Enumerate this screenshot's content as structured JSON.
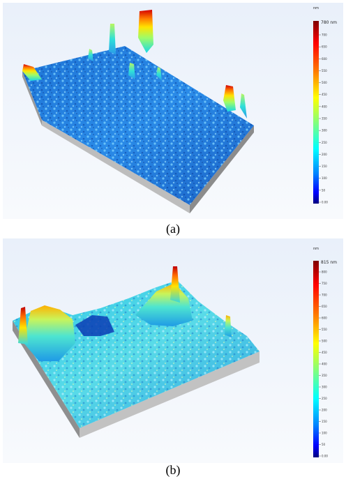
{
  "figure": {
    "panels": [
      {
        "id": "a",
        "caption": "(a)",
        "colorbar": {
          "unit": "nm",
          "max_label": "780 nm",
          "ticks": [
            "700",
            "650",
            "600",
            "550",
            "500",
            "450",
            "400",
            "350",
            "300",
            "250",
            "200",
            "150",
            "100",
            "50",
            "0.00"
          ]
        }
      },
      {
        "id": "b",
        "caption": "(b)",
        "colorbar": {
          "unit": "nm",
          "max_label": "815 nm",
          "ticks": [
            "800",
            "750",
            "700",
            "650",
            "600",
            "550",
            "500",
            "450",
            "400",
            "350",
            "300",
            "250",
            "200",
            "150",
            "100",
            "50",
            "0.00"
          ]
        }
      }
    ],
    "colormap": [
      "#00007f",
      "#0000ff",
      "#007fff",
      "#00ffff",
      "#7fff7f",
      "#ffff00",
      "#ff7f00",
      "#ff0000",
      "#7f0000"
    ]
  }
}
